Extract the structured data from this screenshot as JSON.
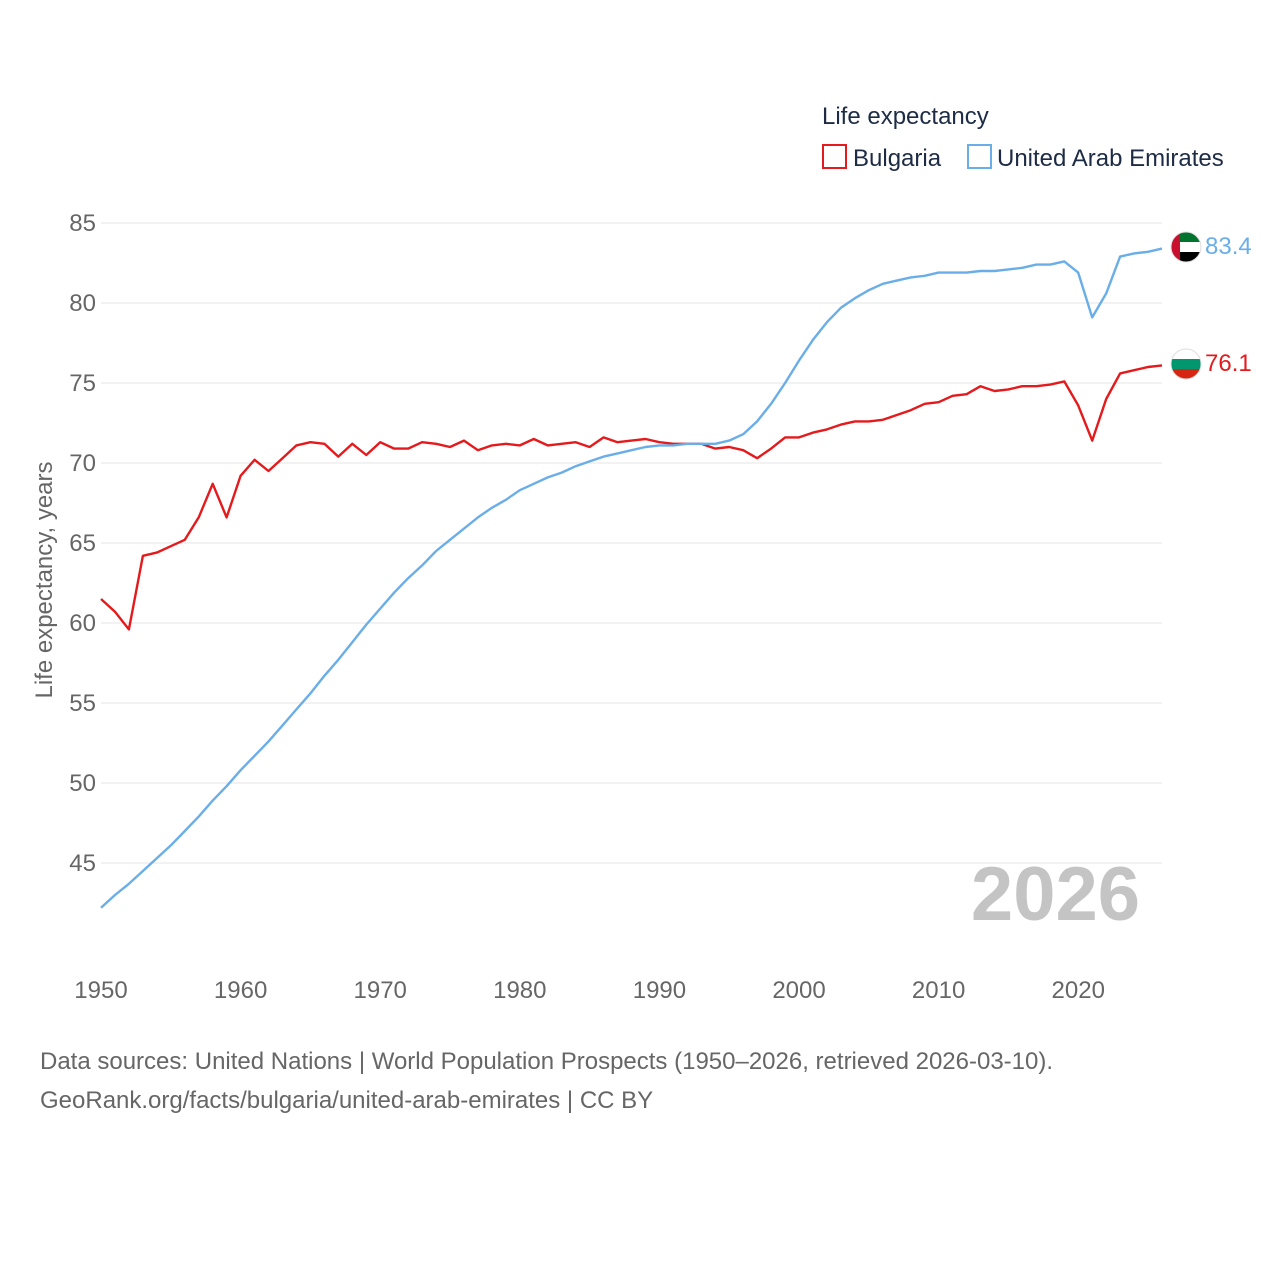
{
  "chart_data": {
    "type": "line",
    "title": "Life expectancy",
    "ylabel": "Life expectancy, years",
    "xlabel": "",
    "xlim": [
      1950,
      2026
    ],
    "ylim": [
      40,
      86
    ],
    "y_ticks": [
      45,
      50,
      55,
      60,
      65,
      70,
      75,
      80,
      85
    ],
    "x_ticks": [
      1950,
      1960,
      1970,
      1980,
      1990,
      2000,
      2010,
      2020
    ],
    "grid": true,
    "legend_position": "top-right",
    "current_year": "2026",
    "x": [
      1950,
      1951,
      1952,
      1953,
      1954,
      1955,
      1956,
      1957,
      1958,
      1959,
      1960,
      1961,
      1962,
      1963,
      1964,
      1965,
      1966,
      1967,
      1968,
      1969,
      1970,
      1971,
      1972,
      1973,
      1974,
      1975,
      1976,
      1977,
      1978,
      1979,
      1980,
      1981,
      1982,
      1983,
      1984,
      1985,
      1986,
      1987,
      1988,
      1989,
      1990,
      1991,
      1992,
      1993,
      1994,
      1995,
      1996,
      1997,
      1998,
      1999,
      2000,
      2001,
      2002,
      2003,
      2004,
      2005,
      2006,
      2007,
      2008,
      2009,
      2010,
      2011,
      2012,
      2013,
      2014,
      2015,
      2016,
      2017,
      2018,
      2019,
      2020,
      2021,
      2022,
      2023,
      2024,
      2025,
      2026
    ],
    "series": [
      {
        "name": "Bulgaria",
        "color": "#e41a1c",
        "end_label": "76.1",
        "flag": "bulgaria-flag",
        "values": [
          61.5,
          60.7,
          59.6,
          64.2,
          64.4,
          64.8,
          65.2,
          66.6,
          68.7,
          66.6,
          69.2,
          70.2,
          69.5,
          70.3,
          71.1,
          71.3,
          71.2,
          70.4,
          71.2,
          70.5,
          71.3,
          70.9,
          70.9,
          71.3,
          71.2,
          71.0,
          71.4,
          70.8,
          71.1,
          71.2,
          71.1,
          71.5,
          71.1,
          71.2,
          71.3,
          71.0,
          71.6,
          71.3,
          71.4,
          71.5,
          71.3,
          71.2,
          71.2,
          71.2,
          70.9,
          71.0,
          70.8,
          70.3,
          70.9,
          71.6,
          71.6,
          71.9,
          72.1,
          72.4,
          72.6,
          72.6,
          72.7,
          73.0,
          73.3,
          73.7,
          73.8,
          74.2,
          74.3,
          74.8,
          74.5,
          74.6,
          74.8,
          74.8,
          74.9,
          75.1,
          73.6,
          71.4,
          74.0,
          75.6,
          75.8,
          76.0,
          76.1
        ]
      },
      {
        "name": "United Arab Emirates",
        "color": "#6aaee8",
        "end_label": "83.4",
        "flag": "uae-flag",
        "values": [
          42.2,
          43.0,
          43.7,
          44.5,
          45.3,
          46.1,
          47.0,
          47.9,
          48.9,
          49.8,
          50.8,
          51.7,
          52.6,
          53.6,
          54.6,
          55.6,
          56.7,
          57.7,
          58.8,
          59.9,
          60.9,
          61.9,
          62.8,
          63.6,
          64.5,
          65.2,
          65.9,
          66.6,
          67.2,
          67.7,
          68.3,
          68.7,
          69.1,
          69.4,
          69.8,
          70.1,
          70.4,
          70.6,
          70.8,
          71.0,
          71.1,
          71.1,
          71.2,
          71.2,
          71.2,
          71.4,
          71.8,
          72.6,
          73.7,
          75.0,
          76.4,
          77.7,
          78.8,
          79.7,
          80.3,
          80.8,
          81.2,
          81.4,
          81.6,
          81.7,
          81.9,
          81.9,
          81.9,
          82.0,
          82.0,
          82.1,
          82.2,
          82.4,
          82.4,
          82.6,
          81.9,
          79.1,
          80.6,
          82.9,
          83.1,
          83.2,
          83.4
        ]
      }
    ]
  },
  "footer": {
    "line1": "Data sources: United Nations | World Population Prospects (1950–2026, retrieved 2026-03-10).",
    "line2": "GeoRank.org/facts/bulgaria/united-arab-emirates | CC BY"
  }
}
